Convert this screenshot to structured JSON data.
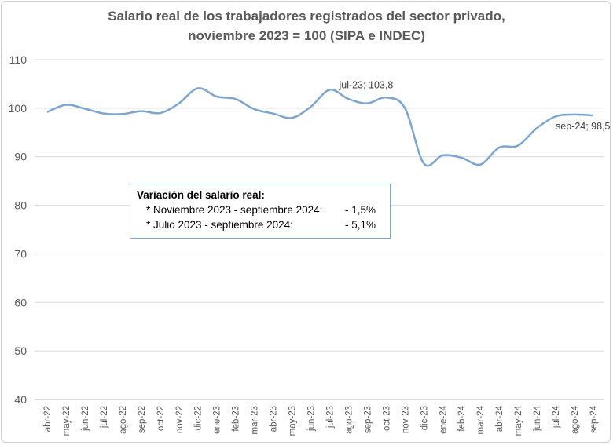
{
  "chart_data": {
    "type": "line",
    "title_line1": "Salario real de los trabajadores registrados del sector privado,",
    "title_line2": "noviembre 2023 = 100 (SIPA e INDEC)",
    "ylim": [
      40,
      110
    ],
    "yticks": [
      40,
      50,
      60,
      70,
      80,
      90,
      100,
      110
    ],
    "grid": true,
    "line_color": "#7aa6cf",
    "categories": [
      "abr-22",
      "may-22",
      "jun-22",
      "jul-22",
      "ago-22",
      "sep-22",
      "oct-22",
      "nov-22",
      "dic-22",
      "ene-23",
      "feb-23",
      "mar-23",
      "abr-23",
      "may-23",
      "jun-23",
      "jul-23",
      "ago-23",
      "sep-23",
      "oct-23",
      "nov-23",
      "dic-23",
      "ene-24",
      "feb-24",
      "mar-24",
      "abr-24",
      "may-24",
      "jun-24",
      "jul-24",
      "ago-24",
      "sep-24"
    ],
    "values": [
      99.2,
      100.7,
      99.9,
      98.9,
      98.8,
      99.4,
      99.0,
      101.0,
      104.1,
      102.4,
      101.9,
      99.8,
      98.9,
      98.0,
      100.3,
      103.8,
      101.9,
      101.0,
      102.2,
      100.0,
      88.6,
      90.3,
      89.8,
      88.4,
      91.9,
      92.3,
      95.9,
      98.3,
      98.7,
      98.5
    ],
    "annotations": [
      {
        "index": 15,
        "text": "jul-23; 103,8"
      },
      {
        "index": 29,
        "text": "sep-24; 98,5"
      }
    ]
  },
  "note": {
    "heading": "Variación del salario real:",
    "rows": [
      {
        "label": "* Noviembre 2023 - septiembre 2024:",
        "value": "- 1,5%"
      },
      {
        "label": "* Julio 2023 - septiembre 2024:",
        "value": "- 5,1%"
      }
    ]
  }
}
